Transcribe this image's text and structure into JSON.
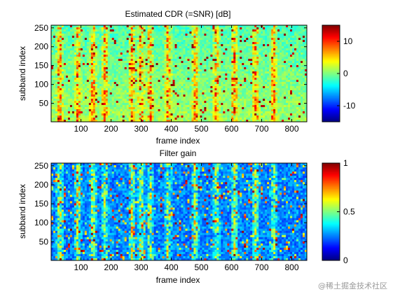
{
  "chart_data": [
    {
      "type": "heatmap",
      "title": "Estimated CDR (=SNR) [dB]",
      "xlabel": "frame index",
      "ylabel": "subband index",
      "xlim": [
        1,
        850
      ],
      "ylim": [
        1,
        257
      ],
      "xticks": [
        "100",
        "200",
        "300",
        "400",
        "500",
        "600",
        "700",
        "800"
      ],
      "yticks": [
        "50",
        "100",
        "150",
        "200",
        "250"
      ],
      "colormap": "jet",
      "clim": [
        -15,
        15
      ],
      "colorbar_ticks": [
        "10",
        "0",
        "-10"
      ],
      "colorbar_tick_values": [
        10,
        0,
        -10
      ],
      "peak_frames": [
        30,
        90,
        140,
        180,
        270,
        300,
        330,
        390,
        480,
        550,
        610,
        680,
        740
      ]
    },
    {
      "type": "heatmap",
      "title": "Filter gain",
      "xlabel": "frame index",
      "ylabel": "subband index",
      "xlim": [
        1,
        850
      ],
      "ylim": [
        1,
        257
      ],
      "xticks": [
        "100",
        "200",
        "300",
        "400",
        "500",
        "600",
        "700",
        "800"
      ],
      "yticks": [
        "50",
        "100",
        "150",
        "200",
        "250"
      ],
      "colormap": "jet",
      "clim": [
        0,
        1
      ],
      "colorbar_ticks": [
        "1",
        "0.5",
        "0"
      ],
      "colorbar_tick_values": [
        1,
        0.5,
        0
      ],
      "peak_frames": [
        30,
        90,
        140,
        180,
        270,
        300,
        330,
        390,
        480,
        550,
        610,
        680,
        740
      ]
    }
  ],
  "watermark": "@稀土掘金技术社区"
}
